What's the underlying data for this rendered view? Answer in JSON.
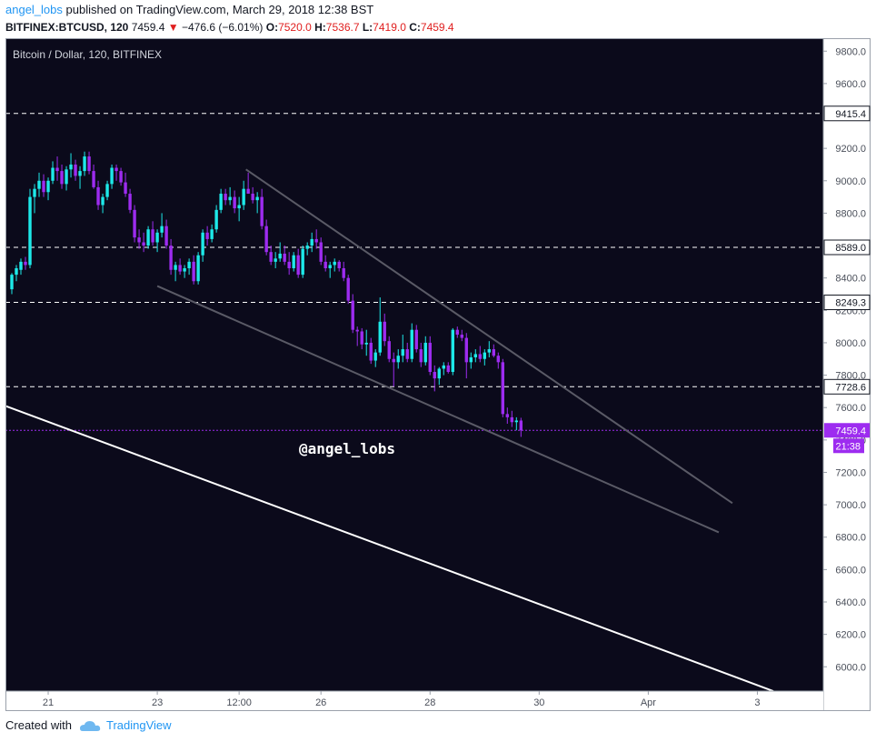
{
  "header": {
    "author": "angel_lobs",
    "published_text": " published on TradingView.com, March 29, 2018 12:38 BST",
    "symbol": "BITFINEX:BTCUSD, 120",
    "last": "7459.4",
    "change": "−476.6 (−6.01%)",
    "o_label": "O:",
    "o_value": "7520.0",
    "h_label": "H:",
    "h_value": "7536.7",
    "l_label": "L:",
    "l_value": "7419.0",
    "c_label": "C:",
    "c_value": "7459.4"
  },
  "footer": {
    "created_with": "Created with",
    "brand": "TradingView"
  },
  "colors": {
    "background": "#0b0a1b",
    "up": "#1de9e9",
    "down": "#9d2cf0",
    "trendline": "#5a5a66",
    "long_line": "#ffffff",
    "hline": "#ffffff",
    "price_line": "#9d2cf0"
  },
  "chart_data": {
    "type": "candlestick",
    "title": "Bitcoin / Dollar, 120, BITFINEX",
    "watermark": "@angel_lobs",
    "ylim": [
      5850,
      9880
    ],
    "y_ticks": [
      9800,
      9600,
      9400,
      9200,
      9000,
      8800,
      8600,
      8400,
      8200,
      8000,
      7800,
      7600,
      7400,
      7200,
      7000,
      6800,
      6600,
      6400,
      6200,
      6000
    ],
    "y_tick_labels": [
      "9800.0",
      "9600.0",
      "9400.0",
      "9200.0",
      "9000.0",
      "8800.0",
      "8600.0",
      "8400.0",
      "8200.0",
      "8000.0",
      "7800.0",
      "7600.0",
      "7400.0",
      "7200.0",
      "7000.0",
      "6800.0",
      "6600.0",
      "6400.0",
      "6200.0",
      "6000.0"
    ],
    "x_ticks": [
      {
        "label": "21",
        "t": 5
      },
      {
        "label": "23",
        "t": 29
      },
      {
        "label": "12:00",
        "t": 47
      },
      {
        "label": "26",
        "t": 65
      },
      {
        "label": "28",
        "t": 89
      },
      {
        "label": "30",
        "t": 113
      },
      {
        "label": "Apr",
        "t": 137
      },
      {
        "label": "3",
        "t": 161
      }
    ],
    "xlim": [
      -4.4,
      175.5
    ],
    "horizontal_levels": [
      {
        "value": 9415.4,
        "label": "9415.4"
      },
      {
        "value": 8589.0,
        "label": "8589.0"
      },
      {
        "value": 8249.3,
        "label": "8249.3"
      },
      {
        "value": 7728.6,
        "label": "7728.6"
      }
    ],
    "last_price": {
      "value": 7459.4,
      "label": "7459.4",
      "countdown": "21:38"
    },
    "trendlines": [
      {
        "name": "upper",
        "t1": 48.5,
        "v1": 9070,
        "t2": 155.5,
        "v2": 7010
      },
      {
        "name": "lower",
        "t1": 29,
        "v1": 8350,
        "t2": 152.5,
        "v2": 6830
      },
      {
        "name": "long",
        "t1": -4.4,
        "v1": 7610,
        "t2": 164.5,
        "v2": 5850
      }
    ],
    "candles": [
      [
        -3,
        8330,
        8430,
        8300,
        8420
      ],
      [
        -2,
        8420,
        8480,
        8380,
        8460
      ],
      [
        -1,
        8450,
        8520,
        8420,
        8500
      ],
      [
        0,
        8500,
        8530,
        8450,
        8480
      ],
      [
        1,
        8480,
        8950,
        8460,
        8900
      ],
      [
        2,
        8900,
        8980,
        8800,
        8950
      ],
      [
        3,
        8950,
        9050,
        8900,
        9000
      ],
      [
        4,
        9000,
        9040,
        8900,
        8930
      ],
      [
        5,
        8930,
        9020,
        8880,
        9000
      ],
      [
        6,
        9000,
        9120,
        8980,
        9080
      ],
      [
        7,
        9080,
        9150,
        9000,
        9060
      ],
      [
        8,
        9060,
        9100,
        8950,
        8980
      ],
      [
        9,
        8980,
        9090,
        8940,
        9070
      ],
      [
        10,
        9070,
        9170,
        9020,
        9100
      ],
      [
        11,
        9100,
        9130,
        9000,
        9030
      ],
      [
        12,
        9030,
        9090,
        8950,
        9060
      ],
      [
        13,
        9060,
        9180,
        9030,
        9150
      ],
      [
        14,
        9150,
        9180,
        9040,
        9060
      ],
      [
        15,
        9060,
        9100,
        8950,
        8960
      ],
      [
        16,
        8960,
        9000,
        8820,
        8850
      ],
      [
        17,
        8850,
        8920,
        8800,
        8900
      ],
      [
        18,
        8900,
        9000,
        8880,
        8980
      ],
      [
        19,
        8980,
        9100,
        8950,
        9080
      ],
      [
        20,
        9080,
        9100,
        9000,
        9060
      ],
      [
        21,
        9060,
        9080,
        8970,
        8990
      ],
      [
        22,
        8990,
        9050,
        8900,
        8920
      ],
      [
        23,
        8920,
        8950,
        8800,
        8820
      ],
      [
        24,
        8820,
        8850,
        8620,
        8650
      ],
      [
        25,
        8650,
        8700,
        8580,
        8620
      ],
      [
        26,
        8620,
        8680,
        8560,
        8600
      ],
      [
        27,
        8600,
        8720,
        8580,
        8700
      ],
      [
        28,
        8700,
        8750,
        8600,
        8620
      ],
      [
        29,
        8620,
        8700,
        8560,
        8680
      ],
      [
        30,
        8680,
        8800,
        8650,
        8720
      ],
      [
        31,
        8720,
        8760,
        8580,
        8600
      ],
      [
        32,
        8600,
        8640,
        8420,
        8450
      ],
      [
        33,
        8450,
        8500,
        8380,
        8480
      ],
      [
        34,
        8480,
        8520,
        8420,
        8440
      ],
      [
        35,
        8440,
        8480,
        8400,
        8460
      ],
      [
        36,
        8460,
        8520,
        8420,
        8500
      ],
      [
        37,
        8500,
        8540,
        8360,
        8380
      ],
      [
        38,
        8380,
        8560,
        8360,
        8540
      ],
      [
        39,
        8540,
        8700,
        8500,
        8680
      ],
      [
        40,
        8680,
        8720,
        8600,
        8640
      ],
      [
        41,
        8640,
        8730,
        8620,
        8700
      ],
      [
        42,
        8700,
        8850,
        8680,
        8820
      ],
      [
        43,
        8820,
        8950,
        8800,
        8920
      ],
      [
        44,
        8920,
        8950,
        8850,
        8880
      ],
      [
        45,
        8880,
        8960,
        8850,
        8900
      ],
      [
        46,
        8900,
        8940,
        8800,
        8830
      ],
      [
        47,
        8830,
        8900,
        8750,
        8850
      ],
      [
        48,
        8850,
        9000,
        8820,
        8950
      ],
      [
        49,
        8950,
        9050,
        8920,
        8920
      ],
      [
        50,
        8920,
        8960,
        8860,
        8880
      ],
      [
        51,
        8880,
        8930,
        8800,
        8900
      ],
      [
        52,
        8900,
        8950,
        8700,
        8720
      ],
      [
        53,
        8720,
        8760,
        8540,
        8560
      ],
      [
        54,
        8560,
        8600,
        8480,
        8500
      ],
      [
        55,
        8500,
        8560,
        8460,
        8520
      ],
      [
        56,
        8520,
        8620,
        8500,
        8550
      ],
      [
        57,
        8550,
        8600,
        8480,
        8500
      ],
      [
        58,
        8500,
        8560,
        8420,
        8460
      ],
      [
        59,
        8460,
        8560,
        8440,
        8540
      ],
      [
        60,
        8540,
        8580,
        8400,
        8420
      ],
      [
        61,
        8420,
        8600,
        8400,
        8580
      ],
      [
        62,
        8580,
        8620,
        8540,
        8600
      ],
      [
        63,
        8600,
        8680,
        8560,
        8640
      ],
      [
        64,
        8640,
        8700,
        8580,
        8620
      ],
      [
        65,
        8620,
        8650,
        8480,
        8500
      ],
      [
        66,
        8500,
        8540,
        8440,
        8460
      ],
      [
        67,
        8460,
        8500,
        8400,
        8480
      ],
      [
        68,
        8480,
        8520,
        8440,
        8500
      ],
      [
        69,
        8500,
        8510,
        8440,
        8460
      ],
      [
        70,
        8460,
        8500,
        8380,
        8400
      ],
      [
        71,
        8400,
        8420,
        8240,
        8260
      ],
      [
        72,
        8260,
        8300,
        8060,
        8080
      ],
      [
        73,
        8080,
        8100,
        7980,
        8070
      ],
      [
        74,
        8070,
        8090,
        7960,
        7990
      ],
      [
        75,
        7990,
        8080,
        7920,
        8000
      ],
      [
        76,
        8000,
        8030,
        7870,
        7890
      ],
      [
        77,
        7890,
        7960,
        7850,
        7940
      ],
      [
        78,
        7940,
        8280,
        7920,
        8130
      ],
      [
        79,
        8130,
        8180,
        7980,
        8010
      ],
      [
        80,
        8010,
        8040,
        7880,
        7900
      ],
      [
        81,
        7900,
        7940,
        7730,
        7880
      ],
      [
        82,
        7880,
        7960,
        7840,
        7920
      ],
      [
        83,
        7920,
        8050,
        7880,
        7960
      ],
      [
        84,
        7960,
        8000,
        7880,
        7900
      ],
      [
        85,
        7900,
        8120,
        7880,
        8080
      ],
      [
        86,
        8080,
        8110,
        7940,
        7960
      ],
      [
        87,
        7960,
        8000,
        7850,
        7880
      ],
      [
        88,
        7880,
        8040,
        7860,
        8000
      ],
      [
        89,
        8000,
        8040,
        7800,
        7820
      ],
      [
        90,
        7820,
        7860,
        7700,
        7780
      ],
      [
        91,
        7780,
        7850,
        7740,
        7840
      ],
      [
        92,
        7840,
        7880,
        7800,
        7860
      ],
      [
        93,
        7860,
        7880,
        7810,
        7820
      ],
      [
        94,
        7820,
        8090,
        7800,
        8080
      ],
      [
        95,
        8080,
        8100,
        8030,
        8050
      ],
      [
        96,
        8050,
        8080,
        8010,
        8030
      ],
      [
        97,
        8030,
        8060,
        7780,
        7880
      ],
      [
        98,
        7880,
        7940,
        7840,
        7910
      ],
      [
        99,
        7910,
        7960,
        7880,
        7930
      ],
      [
        100,
        7930,
        7980,
        7880,
        7900
      ],
      [
        101,
        7900,
        7960,
        7860,
        7940
      ],
      [
        102,
        7940,
        8010,
        7910,
        7960
      ],
      [
        103,
        7960,
        7990,
        7910,
        7920
      ],
      [
        104,
        7920,
        7940,
        7840,
        7880
      ],
      [
        105,
        7880,
        7900,
        7540,
        7560
      ],
      [
        106,
        7560,
        7600,
        7500,
        7540
      ],
      [
        107,
        7540,
        7580,
        7480,
        7510
      ],
      [
        108,
        7510,
        7540,
        7460,
        7520
      ],
      [
        109,
        7520,
        7537,
        7419,
        7459
      ]
    ]
  }
}
